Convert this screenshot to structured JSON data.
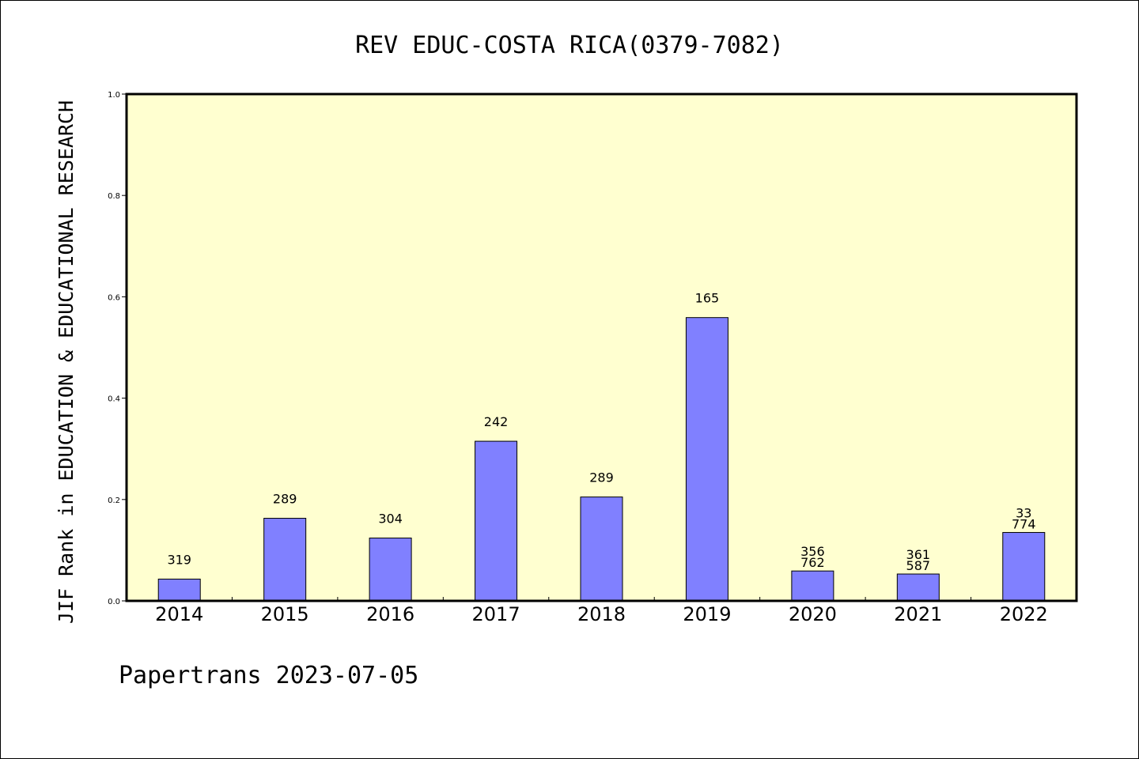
{
  "chart_data": {
    "type": "bar",
    "title": "REV EDUC-COSTA RICA(0379-7082)",
    "xlabel": "",
    "ylabel": "JIF Rank in EDUCATION & EDUCATIONAL RESEARCH",
    "ylim": [
      0,
      1.0
    ],
    "yticks": [
      "0.0",
      "0.2",
      "0.4",
      "0.6",
      "0.8",
      "1.0"
    ],
    "categories": [
      "2014",
      "2015",
      "2016",
      "2017",
      "2018",
      "2019",
      "2020",
      "2021",
      "2022"
    ],
    "values": [
      0.043,
      0.163,
      0.124,
      0.315,
      0.205,
      0.559,
      0.059,
      0.053,
      0.135
    ],
    "labels": [
      [
        "319"
      ],
      [
        "289"
      ],
      [
        "304"
      ],
      [
        "242"
      ],
      [
        "289"
      ],
      [
        "165"
      ],
      [
        "356",
        "762"
      ],
      [
        "361",
        "587"
      ],
      [
        "33",
        "774"
      ]
    ],
    "colors": {
      "plot_bg": "#ffffd0",
      "bar_fill": "#8080ff",
      "bar_stroke": "#000000"
    },
    "grid": false
  },
  "footer": "Papertrans 2023-07-05"
}
